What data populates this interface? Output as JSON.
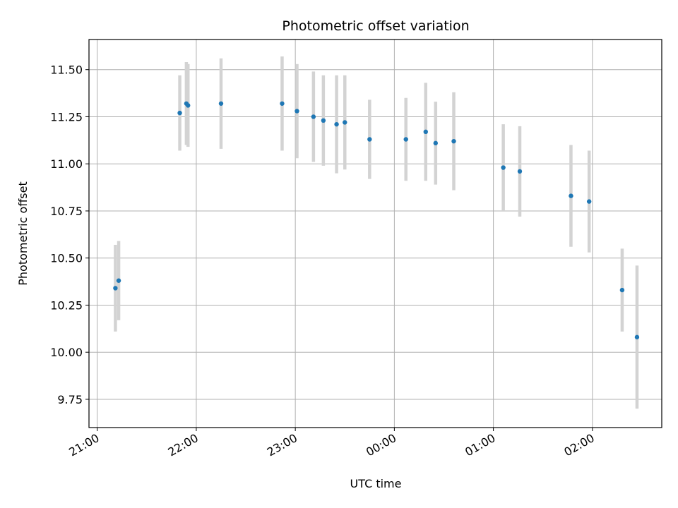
{
  "chart_data": {
    "type": "scatter",
    "title": "Photometric offset variation",
    "xlabel": "UTC time",
    "ylabel": "Photometric offset",
    "grid": true,
    "x_ticks": [
      "21:00",
      "22:00",
      "23:00",
      "00:00",
      "01:00",
      "02:00"
    ],
    "y_ticks": [
      "9.75",
      "10.00",
      "10.25",
      "10.50",
      "10.75",
      "11.00",
      "11.25",
      "11.50"
    ],
    "xlim": [
      "20:55",
      "02:42"
    ],
    "ylim": [
      9.6,
      11.66
    ],
    "point_color": "#1f77b4",
    "errorbar_color": "#d3d3d3",
    "series": [
      {
        "points": [
          {
            "x": "21:11",
            "y": 10.34,
            "err": 0.23
          },
          {
            "x": "21:13",
            "y": 10.38,
            "err": 0.21
          },
          {
            "x": "21:50",
            "y": 11.27,
            "err": 0.2
          },
          {
            "x": "21:54",
            "y": 11.32,
            "err": 0.22
          },
          {
            "x": "21:55",
            "y": 11.31,
            "err": 0.22
          },
          {
            "x": "22:15",
            "y": 11.32,
            "err": 0.24
          },
          {
            "x": "22:52",
            "y": 11.32,
            "err": 0.25
          },
          {
            "x": "23:01",
            "y": 11.28,
            "err": 0.25
          },
          {
            "x": "23:11",
            "y": 11.25,
            "err": 0.24
          },
          {
            "x": "23:17",
            "y": 11.23,
            "err": 0.24
          },
          {
            "x": "23:25",
            "y": 11.21,
            "err": 0.26
          },
          {
            "x": "23:30",
            "y": 11.22,
            "err": 0.25
          },
          {
            "x": "23:45",
            "y": 11.13,
            "err": 0.21
          },
          {
            "x": "00:07",
            "y": 11.13,
            "err": 0.22
          },
          {
            "x": "00:19",
            "y": 11.17,
            "err": 0.26
          },
          {
            "x": "00:25",
            "y": 11.11,
            "err": 0.22
          },
          {
            "x": "00:36",
            "y": 11.12,
            "err": 0.26
          },
          {
            "x": "01:06",
            "y": 10.98,
            "err": 0.23
          },
          {
            "x": "01:16",
            "y": 10.96,
            "err": 0.24
          },
          {
            "x": "01:47",
            "y": 10.83,
            "err": 0.27
          },
          {
            "x": "01:58",
            "y": 10.8,
            "err": 0.27
          },
          {
            "x": "02:18",
            "y": 10.33,
            "err": 0.22
          },
          {
            "x": "02:27",
            "y": 10.08,
            "err": 0.38
          }
        ]
      }
    ]
  }
}
